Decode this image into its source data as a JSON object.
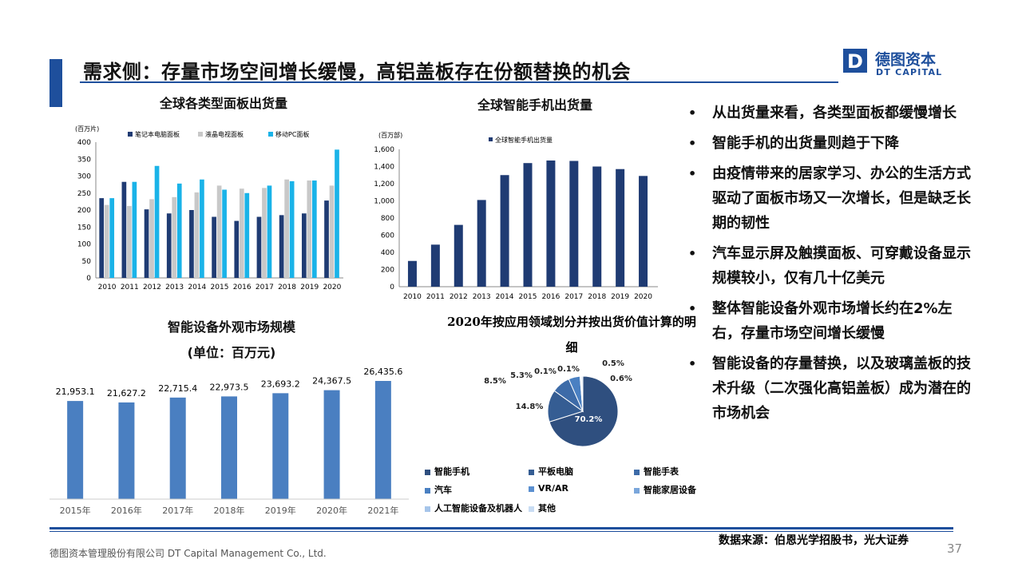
{
  "page": {
    "title": "需求侧：存量市场空间增长缓慢，高铝盖板存在份额替换的机会",
    "logo_cn": "德图资本",
    "logo_en": "DT CAPITAL",
    "logo_mark": "D",
    "source": "数据来源：伯恩光学招股书，光大证券",
    "footer": "德图资本管理股份有限公司 DT Capital Management Co., Ltd.",
    "page_number": "37"
  },
  "bullets": [
    "从出货量来看，各类型面板都缓慢增长",
    "智能手机的出货量则趋于下降",
    "由疫情带来的居家学习、办公的生活方式驱动了面板市场又一次增长，但是缺乏长期的韧性",
    "汽车显示屏及触摸面板、可穿戴设备显示规模较小，仅有几十亿美元",
    "整体智能设备外观市场增长约在2%左右，存量市场空间增长缓慢",
    "智能设备的存量替换，以及玻璃盖板的技术升级（二次强化高铝盖板）成为潜在的市场机会"
  ],
  "chart_data": [
    {
      "type": "bar",
      "title": "全球各类型面板出货量",
      "unit_label": "(百万片)",
      "categories": [
        "2010",
        "2011",
        "2012",
        "2013",
        "2014",
        "2015",
        "2016",
        "2017",
        "2018",
        "2019",
        "2020"
      ],
      "series": [
        {
          "name": "笔记本电脑面板",
          "color": "#1f3b73",
          "values": [
            235,
            283,
            202,
            190,
            200,
            180,
            168,
            180,
            185,
            190,
            228
          ]
        },
        {
          "name": "液晶电视面板",
          "color": "#c8c8c8",
          "values": [
            215,
            212,
            232,
            238,
            252,
            272,
            263,
            265,
            290,
            287,
            272
          ]
        },
        {
          "name": "移动PC面板",
          "color": "#1ab3e8",
          "values": [
            235,
            283,
            330,
            278,
            290,
            260,
            250,
            272,
            285,
            287,
            378
          ]
        }
      ],
      "ylim": [
        0,
        400
      ],
      "yticks": [
        0,
        50,
        100,
        150,
        200,
        250,
        300,
        350,
        400
      ]
    },
    {
      "type": "bar",
      "title": "全球智能手机出货量",
      "unit_label": "(百万部)",
      "categories": [
        "2010",
        "2011",
        "2012",
        "2013",
        "2014",
        "2015",
        "2016",
        "2017",
        "2018",
        "2019",
        "2020"
      ],
      "series": [
        {
          "name": "全球智能手机出货量",
          "color": "#1f3b73",
          "values": [
            300,
            490,
            720,
            1010,
            1300,
            1440,
            1470,
            1465,
            1400,
            1370,
            1290
          ]
        }
      ],
      "ylim": [
        0,
        1600
      ],
      "yticks": [
        "0",
        "200",
        "400",
        "600",
        "800",
        "1,000",
        "1,200",
        "1,400",
        "1,600"
      ]
    },
    {
      "type": "bar",
      "title": "智能设备外观市场规模",
      "subtitle": "(单位：百万元)",
      "categories": [
        "2015年",
        "2016年",
        "2017年",
        "2018年",
        "2019年",
        "2020年",
        "2021年"
      ],
      "values": [
        21953.1,
        21627.2,
        22715.4,
        22973.5,
        23693.2,
        24367.5,
        26435.6
      ],
      "value_labels": [
        "21,953.1",
        "21,627.2",
        "22,715.4",
        "22,973.5",
        "23,693.2",
        "24,367.5",
        "26,435.6"
      ],
      "color": "#4a7fc1"
    },
    {
      "type": "pie",
      "title": "2020年按应用领域划分并按出货价值计算的明细",
      "labels": [
        "智能手机",
        "平板电脑",
        "智能手表",
        "汽车",
        "VR/AR",
        "智能家居设备",
        "人工智能设备及机器人",
        "其他"
      ],
      "values": [
        70.2,
        14.8,
        8.5,
        5.3,
        0.1,
        0.1,
        0.5,
        0.6
      ],
      "value_labels": [
        "70.2%",
        "14.8%",
        "8.5%",
        "5.3%",
        "0.1%",
        "0.1%",
        "0.5%",
        "0.6%"
      ],
      "colors": [
        "#2f4f7f",
        "#355d93",
        "#3d6ba8",
        "#4a80c2",
        "#5a8fd0",
        "#7aa6db",
        "#a6c5ea",
        "#c8dcf3"
      ],
      "legend": "bottom"
    }
  ]
}
